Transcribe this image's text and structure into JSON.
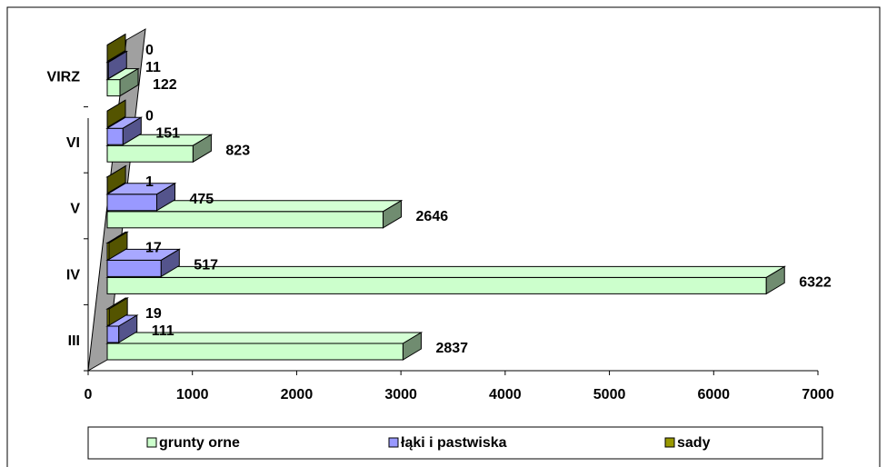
{
  "chart_data": {
    "type": "bar3d_horizontal",
    "categories": [
      "III",
      "IV",
      "V",
      "VI",
      "VIRZ"
    ],
    "series": [
      {
        "name": "grunty orne",
        "color": "#ccffcc",
        "values": [
          2837,
          6322,
          2646,
          823,
          122
        ]
      },
      {
        "name": "łąki i pastwiska",
        "color": "#9999ff",
        "values": [
          111,
          517,
          475,
          151,
          11
        ]
      },
      {
        "name": "sady",
        "color": "#999900",
        "values": [
          19,
          17,
          1,
          0,
          0
        ]
      }
    ],
    "xlim": [
      0,
      7000
    ],
    "xticks": [
      0,
      1000,
      2000,
      3000,
      4000,
      5000,
      6000,
      7000
    ],
    "legend": "bottom"
  }
}
